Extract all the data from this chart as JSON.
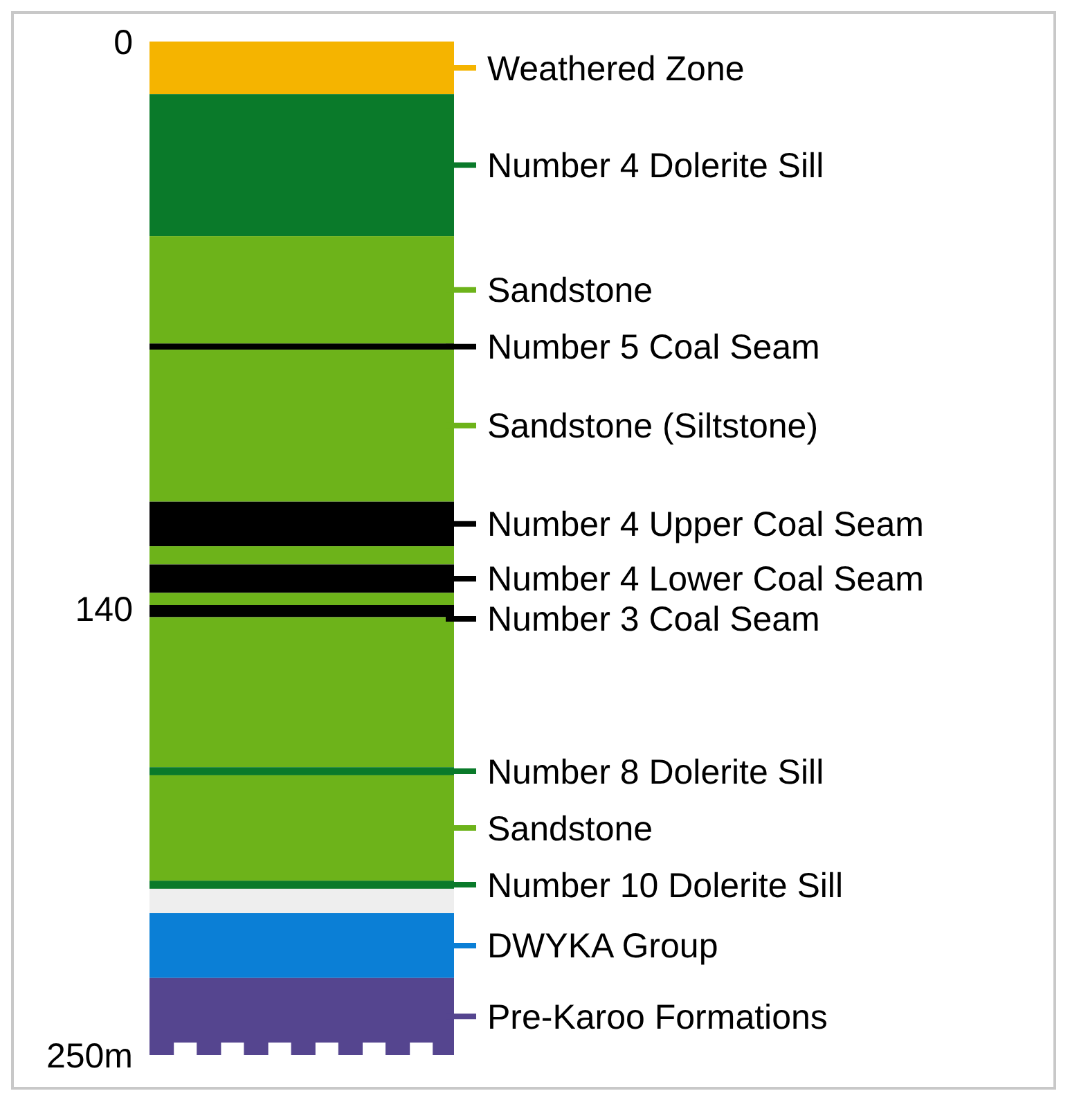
{
  "chart_data": {
    "type": "bar",
    "legend": "right",
    "categories": [
      null
    ],
    "stacked": true,
    "ylim": [
      250,
      0
    ],
    "yticks": [
      0,
      140,
      {
        "value": 250,
        "label": "250m"
      }
    ],
    "series": [
      {
        "name": "Weathered Zone",
        "color": "#f5b400",
        "values": [
          13
        ]
      },
      {
        "name": "Number 4 Dolerite Sill",
        "color": "#0a7a2a",
        "values": [
          35
        ]
      },
      {
        "name": "Sandstone",
        "color": "#6db31a",
        "values": [
          26.5
        ]
      },
      {
        "name": "Number 5 Coal Seam",
        "color": "#000000",
        "values": [
          1.5
        ]
      },
      {
        "name": "Sandstone (Siltstone)",
        "color": "#6db31a",
        "values": [
          37.5
        ]
      },
      {
        "name": "Number 4 Upper Coal Seam",
        "color": "#000000",
        "values": [
          11
        ]
      },
      {
        "color": "#6db31a",
        "values": [
          4.5
        ]
      },
      {
        "name": "Number 4 Lower Coal Seam",
        "color": "#000000",
        "values": [
          7
        ]
      },
      {
        "color": "#6db31a",
        "values": [
          3
        ]
      },
      {
        "name": "Number 3 Coal Seam",
        "color": "#000000",
        "values": [
          3
        ]
      },
      {
        "color": "#6db31a",
        "values": [
          37
        ]
      },
      {
        "name": "Number 8 Dolerite Sill",
        "color": "#0a7a2a",
        "values": [
          2
        ]
      },
      {
        "name": "Sandstone",
        "color": "#6db31a",
        "values": [
          26
        ]
      },
      {
        "name": "Number 10 Dolerite Sill",
        "color": "#0a7a2a",
        "values": [
          2
        ]
      },
      {
        "color": "#eeeeee",
        "values": [
          6
        ]
      },
      {
        "name": "DWYKA Group",
        "color": "#0b7fd6",
        "values": [
          16
        ]
      },
      {
        "name": "Pre-Karoo Formations",
        "color": "#55458f",
        "values": [
          19
        ]
      }
    ]
  }
}
